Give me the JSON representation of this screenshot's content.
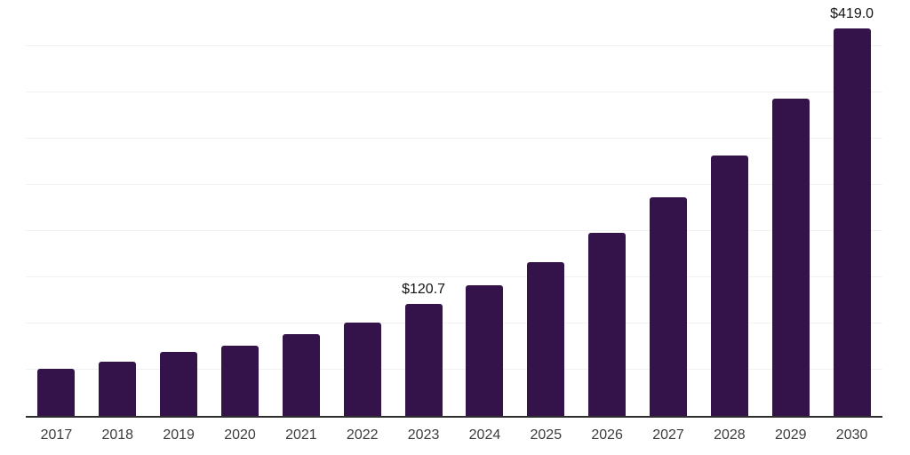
{
  "chart_data": {
    "type": "bar",
    "title": "",
    "xlabel": "",
    "ylabel": "",
    "categories": [
      "2017",
      "2018",
      "2019",
      "2020",
      "2021",
      "2022",
      "2023",
      "2024",
      "2025",
      "2026",
      "2027",
      "2028",
      "2029",
      "2030"
    ],
    "values": [
      50.9,
      58.5,
      68.8,
      75.9,
      88.4,
      100.8,
      120.7,
      141.2,
      166.1,
      197.7,
      236.1,
      282.2,
      343.5,
      419.0
    ],
    "data_labels": {
      "2023": "$120.7",
      "2030": "$419.0"
    },
    "ylim": [
      0,
      450
    ],
    "grid_step": 50,
    "grid": "horizontal-only",
    "legend_position": "none",
    "colors": {
      "bar": "#33134a",
      "grid_line": "#f1f1f1",
      "axis_line": "#2e2e2e",
      "tick_label": "#3d3d3d",
      "data_label": "#141414",
      "background": "#ffffff"
    }
  }
}
